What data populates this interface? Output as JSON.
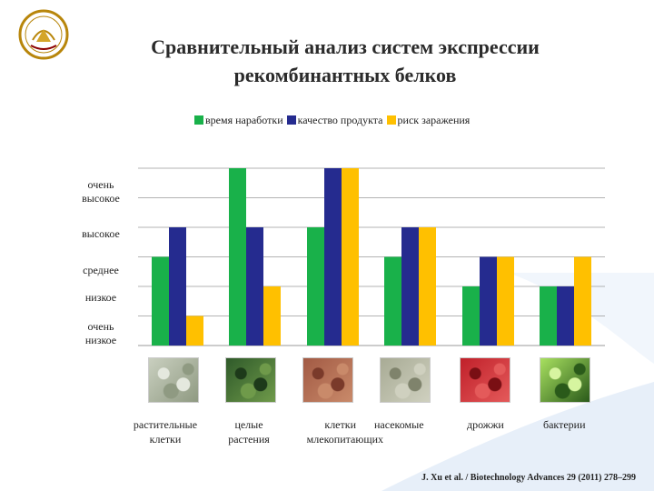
{
  "slide": {
    "title_line1": "Сравнительный анализ систем экспрессии",
    "title_line2": "рекомбинантных белков",
    "citation": "J. Xu et al. / Biotechnology Advances 29 (2011) 278–299"
  },
  "colors": {
    "green": "#19b14a",
    "navy": "#252b8f",
    "yellow": "#ffc000",
    "swoosh": "#d9e6f5",
    "grid": "#9a9a9a"
  },
  "chart_data": {
    "type": "bar",
    "legend_position": "top",
    "grid": true,
    "y_levels": [
      "очень низкое",
      "низкое",
      "среднее",
      "высокое",
      "очень высокое"
    ],
    "ylim": [
      0,
      6
    ],
    "categories": [
      {
        "line1": "растительные",
        "line2": "клетки"
      },
      {
        "line1": "целые",
        "line2": "растения"
      },
      {
        "line1": "клетки",
        "line2": "млекопитающих"
      },
      {
        "line1": "насекомые",
        "line2": ""
      },
      {
        "line1": "дрожжи",
        "line2": ""
      },
      {
        "line1": "бактерии",
        "line2": ""
      }
    ],
    "series": [
      {
        "name": "время наработки",
        "color": "#19b14a",
        "values": [
          3,
          6,
          4,
          3,
          2,
          2
        ]
      },
      {
        "name": "качество продукта",
        "color": "#252b8f",
        "values": [
          4,
          4,
          6,
          4,
          3,
          2
        ]
      },
      {
        "name": "риск заражения",
        "color": "#ffc000",
        "values": [
          1,
          2,
          6,
          4,
          3,
          3
        ]
      }
    ]
  },
  "thumbnails": [
    {
      "name": "plant-cells-image",
      "colors": [
        "#c9cfbf",
        "#8f9a82",
        "#e4e8de"
      ]
    },
    {
      "name": "whole-plants-image",
      "colors": [
        "#2f5a2a",
        "#6f9a4a",
        "#1d3a1a"
      ]
    },
    {
      "name": "mammalian-cells-image",
      "colors": [
        "#a25a44",
        "#c98a6a",
        "#7a3a2a"
      ]
    },
    {
      "name": "insect-cells-image",
      "colors": [
        "#a8ab95",
        "#cfd0bf",
        "#7f836c"
      ]
    },
    {
      "name": "yeast-image",
      "colors": [
        "#c0202a",
        "#e45a5a",
        "#7a0f14"
      ]
    },
    {
      "name": "bacteria-image",
      "colors": [
        "#a8e060",
        "#2a5a1a",
        "#d6f5a0"
      ]
    }
  ]
}
